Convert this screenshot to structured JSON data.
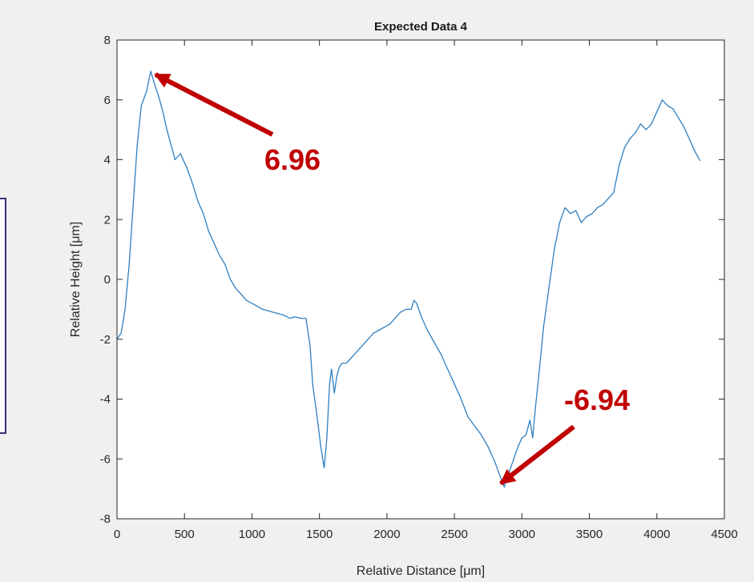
{
  "chart_data": {
    "type": "line",
    "title": "Expected Data 4",
    "xlabel": "Relative Distance [μm]",
    "ylabel": "Relative Height [μm]",
    "xlim": [
      0,
      4500
    ],
    "ylim": [
      -8,
      8
    ],
    "x_ticks": [
      0,
      500,
      1000,
      1500,
      2000,
      2500,
      3000,
      3500,
      4000,
      4500
    ],
    "y_ticks": [
      -8,
      -6,
      -4,
      -2,
      0,
      2,
      4,
      6,
      8
    ],
    "grid": false,
    "line_color": "#2f7fc1",
    "series": [
      {
        "x": [
          0,
          30,
          60,
          90,
          120,
          150,
          180,
          220,
          250,
          280,
          310,
          340,
          370,
          400,
          430,
          470,
          520,
          560,
          600,
          640,
          680,
          720,
          760,
          800,
          840,
          880,
          920,
          960,
          1000,
          1040,
          1080,
          1120,
          1160,
          1200,
          1240,
          1280,
          1320,
          1360,
          1400,
          1430,
          1450,
          1480,
          1510,
          1535,
          1555,
          1575,
          1590,
          1610,
          1630,
          1650,
          1670,
          1700,
          1740,
          1780,
          1820,
          1860,
          1900,
          1940,
          1980,
          2020,
          2060,
          2100,
          2140,
          2180,
          2200,
          2220,
          2260,
          2300,
          2350,
          2400,
          2450,
          2500,
          2550,
          2600,
          2650,
          2700,
          2750,
          2800,
          2840,
          2870,
          2900,
          2940,
          2970,
          3000,
          3030,
          3060,
          3080,
          3100,
          3130,
          3160,
          3200,
          3240,
          3280,
          3320,
          3360,
          3400,
          3440,
          3480,
          3520,
          3560,
          3600,
          3640,
          3680,
          3720,
          3760,
          3800,
          3840,
          3880,
          3920,
          3960,
          4000,
          4040,
          4080,
          4120,
          4160,
          4200,
          4240,
          4280,
          4320
        ],
        "y": [
          -2.0,
          -1.8,
          -1.0,
          0.5,
          2.5,
          4.5,
          5.8,
          6.3,
          6.96,
          6.5,
          6.1,
          5.6,
          5.0,
          4.5,
          4.0,
          4.2,
          3.7,
          3.2,
          2.6,
          2.2,
          1.6,
          1.2,
          0.8,
          0.5,
          0.0,
          -0.3,
          -0.5,
          -0.7,
          -0.8,
          -0.9,
          -1.0,
          -1.05,
          -1.1,
          -1.15,
          -1.2,
          -1.3,
          -1.25,
          -1.3,
          -1.3,
          -2.2,
          -3.5,
          -4.5,
          -5.6,
          -6.3,
          -5.3,
          -3.5,
          -3.0,
          -3.8,
          -3.2,
          -2.9,
          -2.8,
          -2.8,
          -2.6,
          -2.4,
          -2.2,
          -2.0,
          -1.8,
          -1.7,
          -1.6,
          -1.5,
          -1.3,
          -1.1,
          -1.0,
          -1.0,
          -0.7,
          -0.8,
          -1.3,
          -1.7,
          -2.1,
          -2.5,
          -3.0,
          -3.5,
          -4.0,
          -4.6,
          -4.9,
          -5.2,
          -5.6,
          -6.1,
          -6.6,
          -6.94,
          -6.5,
          -6.0,
          -5.6,
          -5.3,
          -5.2,
          -4.7,
          -5.3,
          -4.3,
          -3.0,
          -1.6,
          -0.3,
          1.0,
          1.9,
          2.4,
          2.2,
          2.3,
          1.9,
          2.1,
          2.2,
          2.4,
          2.5,
          2.7,
          2.9,
          3.8,
          4.4,
          4.7,
          4.9,
          5.2,
          5.0,
          5.2,
          5.6,
          6.0,
          5.8,
          5.7,
          5.4,
          5.1,
          4.7,
          4.3,
          3.96
        ]
      }
    ],
    "annotations": [
      {
        "text": "6.96",
        "x": 250,
        "y": 6.96,
        "color": "#c00000"
      },
      {
        "text": "-6.94",
        "x": 2840,
        "y": -6.94,
        "color": "#c00000"
      }
    ]
  }
}
